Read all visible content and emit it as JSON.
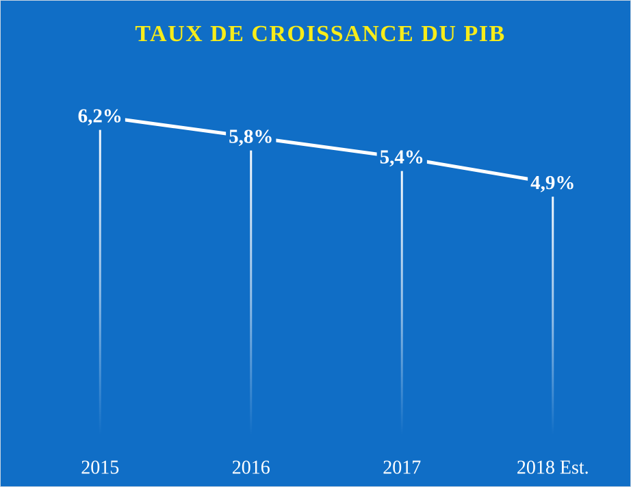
{
  "chart_data": {
    "type": "line",
    "title": "TAUX DE CROISSANCE DU PIB",
    "categories": [
      "2015",
      "2016",
      "2017",
      "2018 Est."
    ],
    "values": [
      6.2,
      5.8,
      5.4,
      4.9
    ],
    "value_labels": [
      "6,2%",
      "5,8%",
      "5,4%",
      "4,9%"
    ],
    "color": "#ffffff",
    "ylim": [
      0,
      7
    ]
  }
}
